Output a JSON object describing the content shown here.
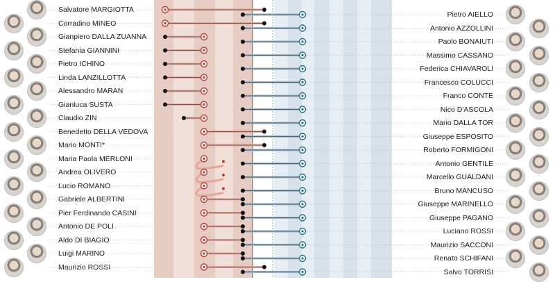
{
  "left_people": [
    {
      "name": "Salvatore MARGIOTTA",
      "path": [
        [
          "r",
          1
        ],
        [
          "b",
          5
        ]
      ]
    },
    {
      "name": "Corradino MINEO",
      "path": [
        [
          "r",
          1
        ],
        [
          "b",
          5
        ]
      ]
    },
    {
      "name": "Gianpiero DALLA ZUANNA",
      "path": [
        [
          "b",
          1
        ],
        [
          "r",
          3
        ]
      ]
    },
    {
      "name": "Stefania GIANNINI",
      "path": [
        [
          "b",
          1
        ],
        [
          "r",
          3
        ]
      ]
    },
    {
      "name": "Pietro ICHINO",
      "path": [
        [
          "b",
          1
        ],
        [
          "r",
          3
        ]
      ]
    },
    {
      "name": "Linda LANZILLOTTA",
      "path": [
        [
          "b",
          1
        ],
        [
          "r",
          3
        ]
      ]
    },
    {
      "name": "Alessandro MARAN",
      "path": [
        [
          "b",
          1
        ],
        [
          "r",
          3
        ]
      ]
    },
    {
      "name": "Gianluca SUSTA",
      "path": [
        [
          "b",
          1
        ],
        [
          "r",
          3
        ]
      ]
    },
    {
      "name": "Claudio ZIN",
      "path": [
        [
          "b",
          2
        ],
        [
          "r",
          3
        ]
      ]
    },
    {
      "name": "Benedetto DELLA VEDOVA",
      "path": [
        [
          "r",
          3
        ],
        [
          "b",
          5
        ]
      ]
    },
    {
      "name": "Mario MONTI*",
      "path": [
        [
          "r",
          3
        ],
        [
          "b",
          5
        ]
      ]
    },
    {
      "name": "Maria Paola MERLONI",
      "path": [
        [
          "r",
          3
        ],
        [
          "r",
          3.6
        ]
      ]
    },
    {
      "name": "Andrea OLIVERO",
      "path": [
        [
          "r",
          3
        ],
        [
          "r",
          3.6
        ]
      ]
    },
    {
      "name": "Lucio ROMANO",
      "path": [
        [
          "r",
          3
        ],
        [
          "r",
          3.6
        ]
      ]
    },
    {
      "name": "Gabriele ALBERTINI",
      "path": [
        [
          "r",
          3
        ],
        [
          "b",
          4
        ]
      ]
    },
    {
      "name": "Pier Ferdinando CASINI",
      "path": [
        [
          "r",
          3
        ],
        [
          "b",
          4
        ]
      ]
    },
    {
      "name": "Antonio DE POLI",
      "path": [
        [
          "r",
          3
        ],
        [
          "b",
          4
        ]
      ]
    },
    {
      "name": "Aldo DI BIAGIO",
      "path": [
        [
          "r",
          3
        ],
        [
          "b",
          4
        ]
      ]
    },
    {
      "name": "Luigi MARINO",
      "path": [
        [
          "r",
          3
        ],
        [
          "b",
          4
        ]
      ]
    },
    {
      "name": "Maurizio  ROSSI",
      "path": [
        [
          "r",
          3
        ],
        [
          "b",
          5
        ]
      ]
    }
  ],
  "right_people": [
    {
      "name": "Pietro AIELLO",
      "path": [
        [
          "b",
          4
        ],
        [
          "t",
          5.5
        ]
      ]
    },
    {
      "name": "Antonio AZZOLLINI",
      "path": [
        [
          "b",
          4
        ],
        [
          "t",
          5.5
        ]
      ]
    },
    {
      "name": "Paolo BONAIUTI",
      "path": [
        [
          "b",
          4
        ],
        [
          "t",
          5.5
        ]
      ]
    },
    {
      "name": "Massimo CASSANO",
      "path": [
        [
          "b",
          4
        ],
        [
          "t",
          5.5
        ]
      ]
    },
    {
      "name": "Federica CHIAVAROLI",
      "path": [
        [
          "b",
          4
        ],
        [
          "t",
          5.5
        ]
      ]
    },
    {
      "name": "Francesco COLUCCI",
      "path": [
        [
          "b",
          4
        ],
        [
          "t",
          5.5
        ]
      ]
    },
    {
      "name": "Franco CONTE",
      "path": [
        [
          "b",
          4
        ],
        [
          "t",
          5.5
        ]
      ]
    },
    {
      "name": "Nico D'ASCOLA",
      "path": [
        [
          "b",
          4
        ],
        [
          "t",
          5.5
        ]
      ]
    },
    {
      "name": "Mario DALLA TOR",
      "path": [
        [
          "b",
          4
        ],
        [
          "t",
          5.5
        ]
      ]
    },
    {
      "name": "Giuseppe ESPOSITO",
      "path": [
        [
          "b",
          4
        ],
        [
          "t",
          5.5
        ]
      ]
    },
    {
      "name": "Roberto FORMIGONI",
      "path": [
        [
          "b",
          4
        ],
        [
          "t",
          5.5
        ]
      ]
    },
    {
      "name": "Antonio GENTILE",
      "path": [
        [
          "b",
          4
        ],
        [
          "t",
          5.5
        ]
      ]
    },
    {
      "name": "Marcello GUALDANI",
      "path": [
        [
          "b",
          4
        ],
        [
          "t",
          5.5
        ]
      ]
    },
    {
      "name": "Bruno MANCUSO",
      "path": [
        [
          "b",
          4
        ],
        [
          "t",
          5.5
        ]
      ]
    },
    {
      "name": "Giuseppe  MARINELLO",
      "path": [
        [
          "b",
          4
        ],
        [
          "t",
          5.5
        ]
      ]
    },
    {
      "name": "Giuseppe PAGANO",
      "path": [
        [
          "b",
          4
        ],
        [
          "t",
          5.5
        ]
      ]
    },
    {
      "name": "Luciano ROSSI",
      "path": [
        [
          "b",
          4
        ],
        [
          "t",
          5.5
        ]
      ]
    },
    {
      "name": "Maurizio SACCONI",
      "path": [
        [
          "b",
          4
        ],
        [
          "t",
          5.5
        ]
      ]
    },
    {
      "name": "Renato SCHIFANI",
      "path": [
        [
          "b",
          4
        ],
        [
          "t",
          5.5
        ]
      ]
    },
    {
      "name": "Salvo TORRISI",
      "path": [
        [
          "b",
          4
        ],
        [
          "t",
          5.5
        ]
      ]
    }
  ],
  "colors": {
    "red_line": "#e8a595",
    "red_marker": "#c0392b",
    "blue_line": "#9bb7cc",
    "teal_marker": "#1f6f8b",
    "dot": "#111111",
    "band_red_1": "#f1dfd9",
    "band_red_2": "#e7ccc4",
    "band_blue_1": "#e6edf3",
    "band_blue_2": "#d6e1ea",
    "leader": "#9a9a9a"
  }
}
